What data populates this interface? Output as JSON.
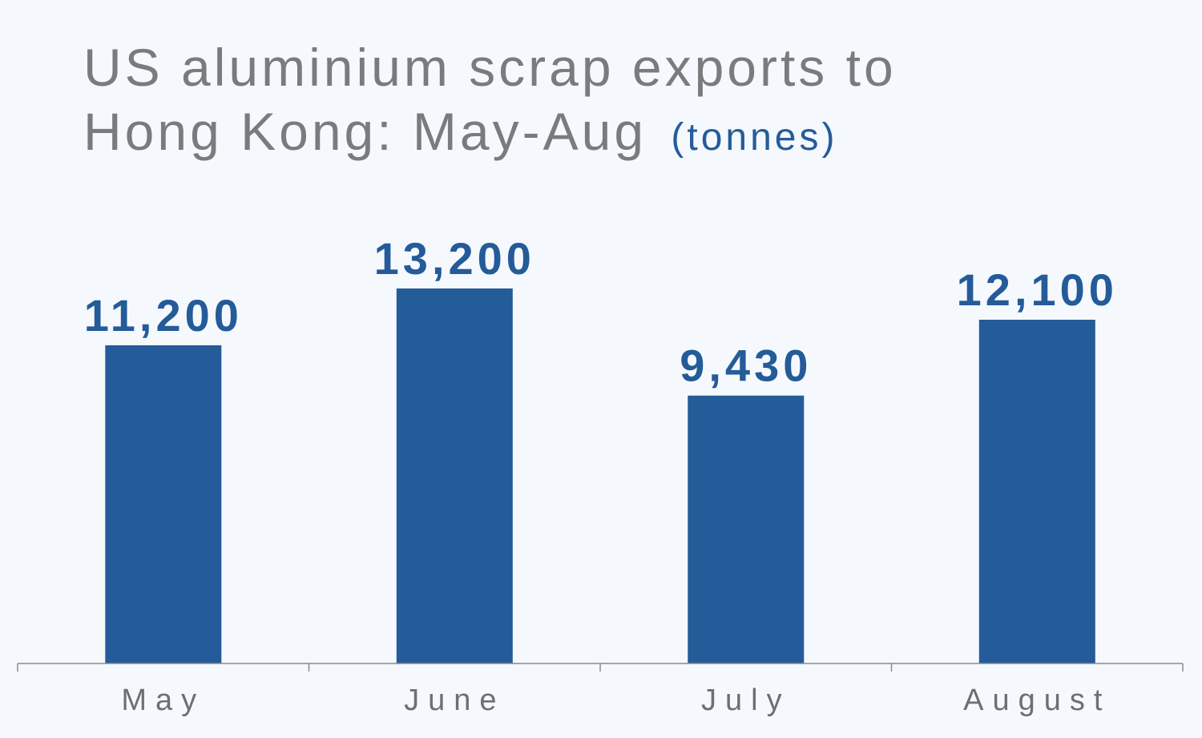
{
  "title": {
    "main_line1": "US aluminium scrap exports to",
    "main_line2": "Hong Kong: May-Aug",
    "unit": "(tonnes)"
  },
  "colors": {
    "background": "#f5f9fd",
    "bar": "#245b99",
    "title": "#7b7b7d",
    "value_label": "#245b99",
    "axis": "#8a8a8a",
    "category_label": "#6f6f71"
  },
  "chart_data": {
    "type": "bar",
    "title": "US aluminium scrap exports to Hong Kong: May-Aug (tonnes)",
    "categories": [
      "May",
      "June",
      "July",
      "August"
    ],
    "values": [
      11200,
      13200,
      9430,
      12100
    ],
    "value_labels": [
      "11,200",
      "13,200",
      "9,430",
      "12,100"
    ],
    "xlabel": "",
    "ylabel": "",
    "ylim": [
      0,
      13200
    ],
    "grid": false,
    "legend": "none"
  }
}
